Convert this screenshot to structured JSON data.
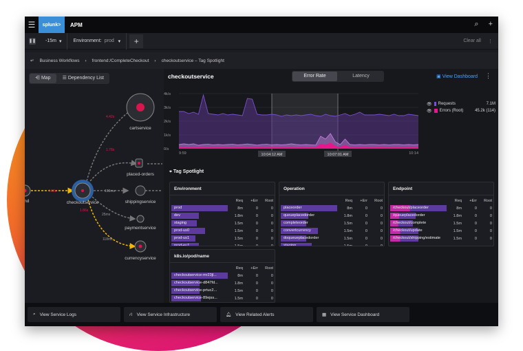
{
  "app": {
    "logo": "splunk>",
    "title": "APM"
  },
  "filters": {
    "time": "-15m",
    "env_label": "Environment:",
    "env_value": "prod",
    "clear": "Clear all"
  },
  "breadcrumb": [
    "Business Workflows",
    "frontend:/CompleteCheckout",
    "checkoutservice – Tag Spotlight"
  ],
  "map": {
    "tabs": [
      "Map",
      "Dependency List"
    ],
    "nodes": [
      "tend",
      "checkoutservice",
      "cartservice",
      "placed-orders",
      "shippingservice",
      "paymentservice",
      "currencyservice"
    ],
    "edges": [
      "4.68s",
      "4.42s",
      "1.78s",
      "103ms",
      "1.86s",
      "25ms",
      "118ms"
    ]
  },
  "service": {
    "title": "checkoutservice",
    "tabs": [
      "Error Rate",
      "Latency"
    ],
    "view_dashboard": "View Dashboard"
  },
  "chart_data": {
    "type": "area",
    "yticks": [
      "0/s",
      "1k/s",
      "2k/s",
      "3k/s",
      "4k/s"
    ],
    "ylim": [
      0,
      4000
    ],
    "xticks": [
      "9:59",
      "10:14"
    ],
    "selection": [
      "10:04:12 AM",
      "10:07:01 AM"
    ],
    "series": [
      {
        "name": "Requests",
        "total": "7.1M",
        "color": "#7a4fd0",
        "values": [
          2700,
          2700,
          2550,
          2650,
          2500,
          3900,
          2550,
          2500,
          2450,
          2550,
          2450,
          2500,
          2450,
          2400,
          3650,
          3600,
          2500,
          2450,
          2450,
          2500,
          2450,
          2350,
          2450,
          2400,
          2450,
          2400,
          2450,
          2500,
          2400,
          2350,
          2500,
          2400,
          2350,
          2450,
          2550,
          2400,
          2500,
          2650,
          2450,
          2450,
          2450,
          2500,
          2450,
          2400,
          2500,
          2400,
          2400,
          2500,
          2450,
          2400
        ]
      },
      {
        "name": "Errors (Root)",
        "total": "45.2k (114)",
        "color": "#e8168c",
        "values": [
          300,
          350,
          300,
          350,
          250,
          300,
          320,
          280,
          300,
          280,
          300,
          320,
          280,
          300,
          340,
          300,
          260,
          300,
          320,
          280,
          300,
          280,
          300,
          350,
          300,
          280,
          300,
          280,
          260,
          900,
          700,
          1100,
          500,
          300,
          700,
          300,
          280,
          300,
          280,
          300,
          300,
          280,
          300,
          280,
          300,
          300,
          280,
          300,
          280,
          300
        ]
      }
    ]
  },
  "tag_spotlight": {
    "title": "Tag Spotlight",
    "cols": [
      "Req",
      "+Err",
      "Root"
    ],
    "cards": [
      {
        "title": "Environment",
        "rows": [
          [
            "prod",
            "8m",
            "0",
            "0",
            1
          ],
          [
            "dev",
            "1.8m",
            "0",
            "0",
            0.49
          ],
          [
            "staging",
            "1.5m",
            "0",
            "0",
            0.45
          ],
          [
            "prod-us0",
            "1.5m",
            "0",
            "0",
            0.6
          ],
          [
            "prod-us1",
            "1.5m",
            "0",
            "0",
            0.43
          ],
          [
            "prod-eu1",
            "1.5m",
            "0",
            "0",
            0.49
          ]
        ]
      },
      {
        "title": "Operation",
        "rows": [
          [
            "placeorder",
            "8m",
            "0",
            "0",
            1
          ],
          [
            "queueplacedorder",
            "1.8m",
            "0",
            "0",
            0.49
          ],
          [
            "completeorder",
            "1.5m",
            "0",
            "0",
            0.45
          ],
          [
            "convertcurrency",
            "1.5m",
            "0",
            "0",
            0.66
          ],
          [
            "doqueueplacedorder",
            "1.5m",
            "0",
            "0",
            0.45
          ],
          [
            "staging",
            "1.5m",
            "0",
            "0",
            0.55
          ]
        ]
      },
      {
        "title": "Endpoint",
        "rows": [
          [
            "/checkout/placeorder",
            "8m",
            "0",
            "0",
            1
          ],
          [
            "/queueplacedorder",
            "1.8m",
            "0",
            "0",
            0.45
          ],
          [
            "/checkout/complete",
            "1.5m",
            "0",
            "0",
            0.4
          ],
          [
            "/checkout/update",
            "1.5m",
            "0",
            "0",
            0.5
          ],
          [
            "/checkout/shipping/estimate",
            "1.5m",
            "0",
            "0",
            0.5
          ]
        ]
      },
      {
        "title": "k8s.io/pod/name",
        "rows": [
          [
            "checkoutservice-mr23jl...",
            "8m",
            "0",
            "0",
            1
          ],
          [
            "checkoutservice-d847fd...",
            "1.8m",
            "0",
            "0",
            0.5
          ],
          [
            "checkoutservice-prtuc2...",
            "1.5m",
            "0",
            "0",
            0.5
          ],
          [
            "checkoutservice-89ejss...",
            "1.5m",
            "0",
            "0",
            0.52
          ]
        ]
      }
    ]
  },
  "actions": [
    "View Service Logs",
    "View Service Infrastructure",
    "View Related Alerts",
    "View Service Dashboard"
  ]
}
